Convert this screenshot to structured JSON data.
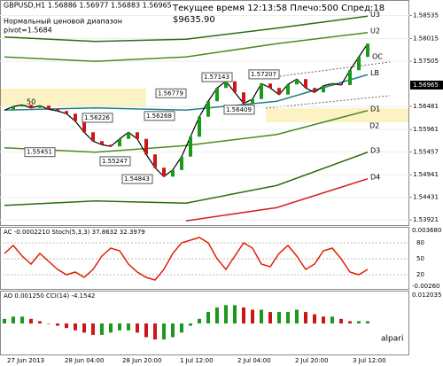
{
  "chart_data": {
    "type": "line",
    "title": "GBPUSD,H1 1.56886 1.56977 1.56883 1.56965",
    "subtitle": "Нормальный ценовой диапазон",
    "pivot_label": "pivot=1.5684",
    "status": "Текущее время 12:13:58 Плечо:500 Спред:18",
    "balance": "$9635.90",
    "logo": "alpari",
    "ylim": [
      1.53785,
      1.58885
    ],
    "yticks": [
      1.58535,
      1.58015,
      1.57505,
      1.56481,
      1.55961,
      1.55457,
      1.54941,
      1.54431,
      1.53921
    ],
    "current_price": 1.56965,
    "series": [
      {
        "name": "GBPUSD",
        "color": "#000000",
        "values": [
          1.564,
          1.5648,
          1.5652,
          1.5645,
          1.565,
          1.5642,
          1.5638,
          1.5632,
          1.5615,
          1.559,
          1.557,
          1.5562,
          1.5558,
          1.5575,
          1.559,
          1.5575,
          1.554,
          1.551,
          1.549,
          1.5505,
          1.5535,
          1.558,
          1.5625,
          1.566,
          1.569,
          1.5705,
          1.568,
          1.5655,
          1.5665,
          1.57,
          1.569,
          1.5675,
          1.5698,
          1.571,
          1.569,
          1.568,
          1.5695,
          1.57,
          1.56965,
          1.573,
          1.576,
          1.579
        ]
      }
    ],
    "bands": [
      {
        "name": "U3",
        "color": "#2e6b0e",
        "values": [
          1.5805,
          1.5795,
          1.58,
          1.5825,
          1.5852
        ]
      },
      {
        "name": "U2",
        "color": "#4c8a1c",
        "values": [
          1.576,
          1.575,
          1.576,
          1.579,
          1.5815
        ]
      },
      {
        "name": "LB",
        "color": "#1f7f86",
        "values": [
          1.564,
          1.5645,
          1.564,
          1.566,
          1.572
        ]
      },
      {
        "name": "D1",
        "color": "#4c8a1c",
        "values": [
          1.5555,
          1.5545,
          1.556,
          1.5585,
          1.5639
        ]
      },
      {
        "name": "D3",
        "color": "#2e6b0e",
        "values": [
          1.5425,
          1.5435,
          1.543,
          1.547,
          1.5545
        ]
      },
      {
        "name": "D4",
        "color": "#d42020",
        "values": [
          null,
          null,
          1.539,
          1.542,
          1.5485
        ]
      }
    ],
    "price_labels": [
      1.55451,
      1.56226,
      1.55247,
      1.54843,
      1.56268,
      1.56779,
      1.57143,
      1.57207,
      1.56409
    ],
    "level_labels": [
      "D2",
      "OC"
    ],
    "annotation": "50",
    "ac_panel": {
      "title": "AC -0.0002210 Stoch(5,3,3) 37.8632 32.3979",
      "top_label": "0.003680",
      "bottom_label": "-0.00260",
      "ylim": [
        0,
        100
      ],
      "yticks": [
        80,
        50,
        20
      ],
      "color": "#e02000",
      "values": [
        60,
        75,
        55,
        40,
        60,
        45,
        30,
        20,
        25,
        15,
        30,
        55,
        70,
        65,
        40,
        25,
        15,
        10,
        30,
        60,
        80,
        85,
        90,
        80,
        50,
        30,
        55,
        80,
        70,
        40,
        35,
        60,
        75,
        55,
        30,
        40,
        65,
        70,
        50,
        25,
        20,
        30
      ]
    },
    "ao_panel": {
      "title": "AO 0.001250 CCI(14) -4.1542",
      "top_label": "0.012035",
      "ylim": [
        -0.012,
        0.012
      ],
      "values": [
        0.002,
        0.003,
        0.003,
        0.002,
        0.001,
        0.0,
        -0.001,
        -0.002,
        -0.003,
        -0.004,
        -0.005,
        -0.005,
        -0.004,
        -0.003,
        -0.003,
        -0.004,
        -0.006,
        -0.007,
        -0.007,
        -0.006,
        -0.004,
        -0.001,
        0.002,
        0.005,
        0.007,
        0.008,
        0.008,
        0.007,
        0.006,
        0.006,
        0.005,
        0.005,
        0.005,
        0.006,
        0.005,
        0.004,
        0.003,
        0.003,
        0.002,
        0.001,
        0.001,
        0.001
      ]
    },
    "time_labels": [
      "27 Jun 2013",
      "28 Jun 04:00",
      "28 Jun 20:00",
      "1 Jul 12:00",
      "2 Jul 04:00",
      "2 Jul 20:00",
      "3 Jul 12:00"
    ]
  }
}
